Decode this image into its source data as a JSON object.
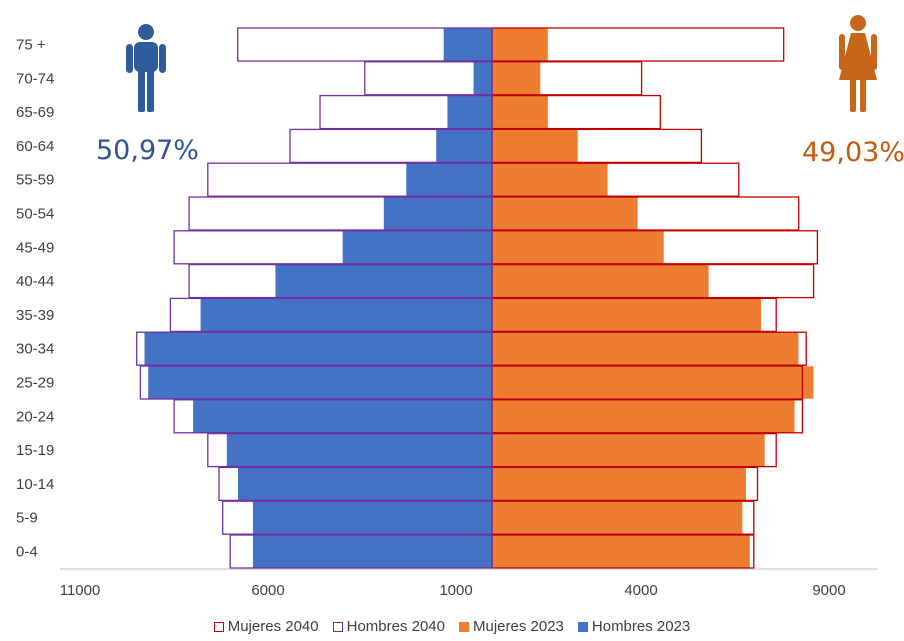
{
  "chart_data": {
    "type": "bar",
    "orientation": "horizontal",
    "layout": "population-pyramid",
    "categories": [
      "0-4",
      "5-9",
      "10-14",
      "15-19",
      "20-24",
      "25-29",
      "30-34",
      "35-39",
      "40-44",
      "45-49",
      "50-54",
      "55-59",
      "60-64",
      "65-69",
      "70-74",
      "75 +"
    ],
    "series": [
      {
        "name": "Mujeres 2040",
        "side": "right",
        "style": "outline",
        "color": "#c00000",
        "values": [
          7000,
          7000,
          7100,
          7600,
          8300,
          8300,
          8400,
          7600,
          8600,
          8700,
          8200,
          6600,
          5600,
          4500,
          4000,
          7800
        ]
      },
      {
        "name": "Hombres 2040",
        "side": "left",
        "style": "outline",
        "color": "#7030a0",
        "values": [
          7000,
          7200,
          7300,
          7600,
          8500,
          9400,
          9500,
          8600,
          8100,
          8500,
          8100,
          7600,
          5400,
          4600,
          3400,
          6800
        ]
      },
      {
        "name": "Mujeres 2023",
        "side": "right",
        "style": "filled",
        "color": "#ed7d31",
        "values": [
          6900,
          6700,
          6800,
          7300,
          8100,
          8600,
          8200,
          7200,
          5800,
          4600,
          3900,
          3100,
          2300,
          1500,
          1300,
          1500
        ]
      },
      {
        "name": "Hombres 2023",
        "side": "left",
        "style": "filled",
        "color": "#4472c4",
        "values": [
          6400,
          6400,
          6800,
          7100,
          8000,
          9200,
          9300,
          7800,
          5800,
          4000,
          2900,
          2300,
          1500,
          1200,
          500,
          1300
        ]
      }
    ],
    "x_tick_labels": [
      "11000",
      "6000",
      "1000",
      "4000",
      "9000"
    ],
    "x_range_left": [
      0,
      11000
    ],
    "x_range_right": [
      0,
      9000
    ],
    "title": "",
    "xlabel": "",
    "ylabel": "",
    "grid": false,
    "legend_position": "bottom",
    "annotations": {
      "male_share": "50,97%",
      "female_share": "49,03%"
    },
    "colors": {
      "male_text": "#2f5597",
      "female_text": "#c55a11",
      "male_icon": "#2e5b9a",
      "female_icon": "#c8651b"
    },
    "icons": {
      "male": "male-figure-icon",
      "female": "female-figure-icon"
    }
  }
}
